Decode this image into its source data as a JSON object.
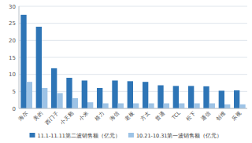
{
  "chart_data": {
    "type": "bar",
    "categories": [
      "海尔",
      "美的",
      "西门子",
      "小天鹅",
      "小米",
      "格力",
      "海信",
      "老板",
      "方太",
      "普通",
      "TCL",
      "松下",
      "通信",
      "创维",
      "乐视"
    ],
    "series": [
      {
        "name": "11.1-11.11第二波销售额（亿元）",
        "color": "#2e75b6",
        "values": [
          27.5,
          24.0,
          11.8,
          9.0,
          8.2,
          6.0,
          8.2,
          8.0,
          7.8,
          6.8,
          6.6,
          6.6,
          6.5,
          5.2,
          5.3
        ]
      },
      {
        "name": "10.21-10.31第一波销售额（亿元）",
        "color": "#9dc3e6",
        "values": [
          7.8,
          6.0,
          4.5,
          3.0,
          1.8,
          1.5,
          1.5,
          1.5,
          1.5,
          1.5,
          1.5,
          1.5,
          1.5,
          1.2,
          1.2
        ]
      }
    ],
    "ylim": [
      0,
      30
    ],
    "yticks": [
      0,
      5,
      10,
      15,
      20,
      25,
      30
    ],
    "grid": true,
    "legend": "bottom"
  }
}
